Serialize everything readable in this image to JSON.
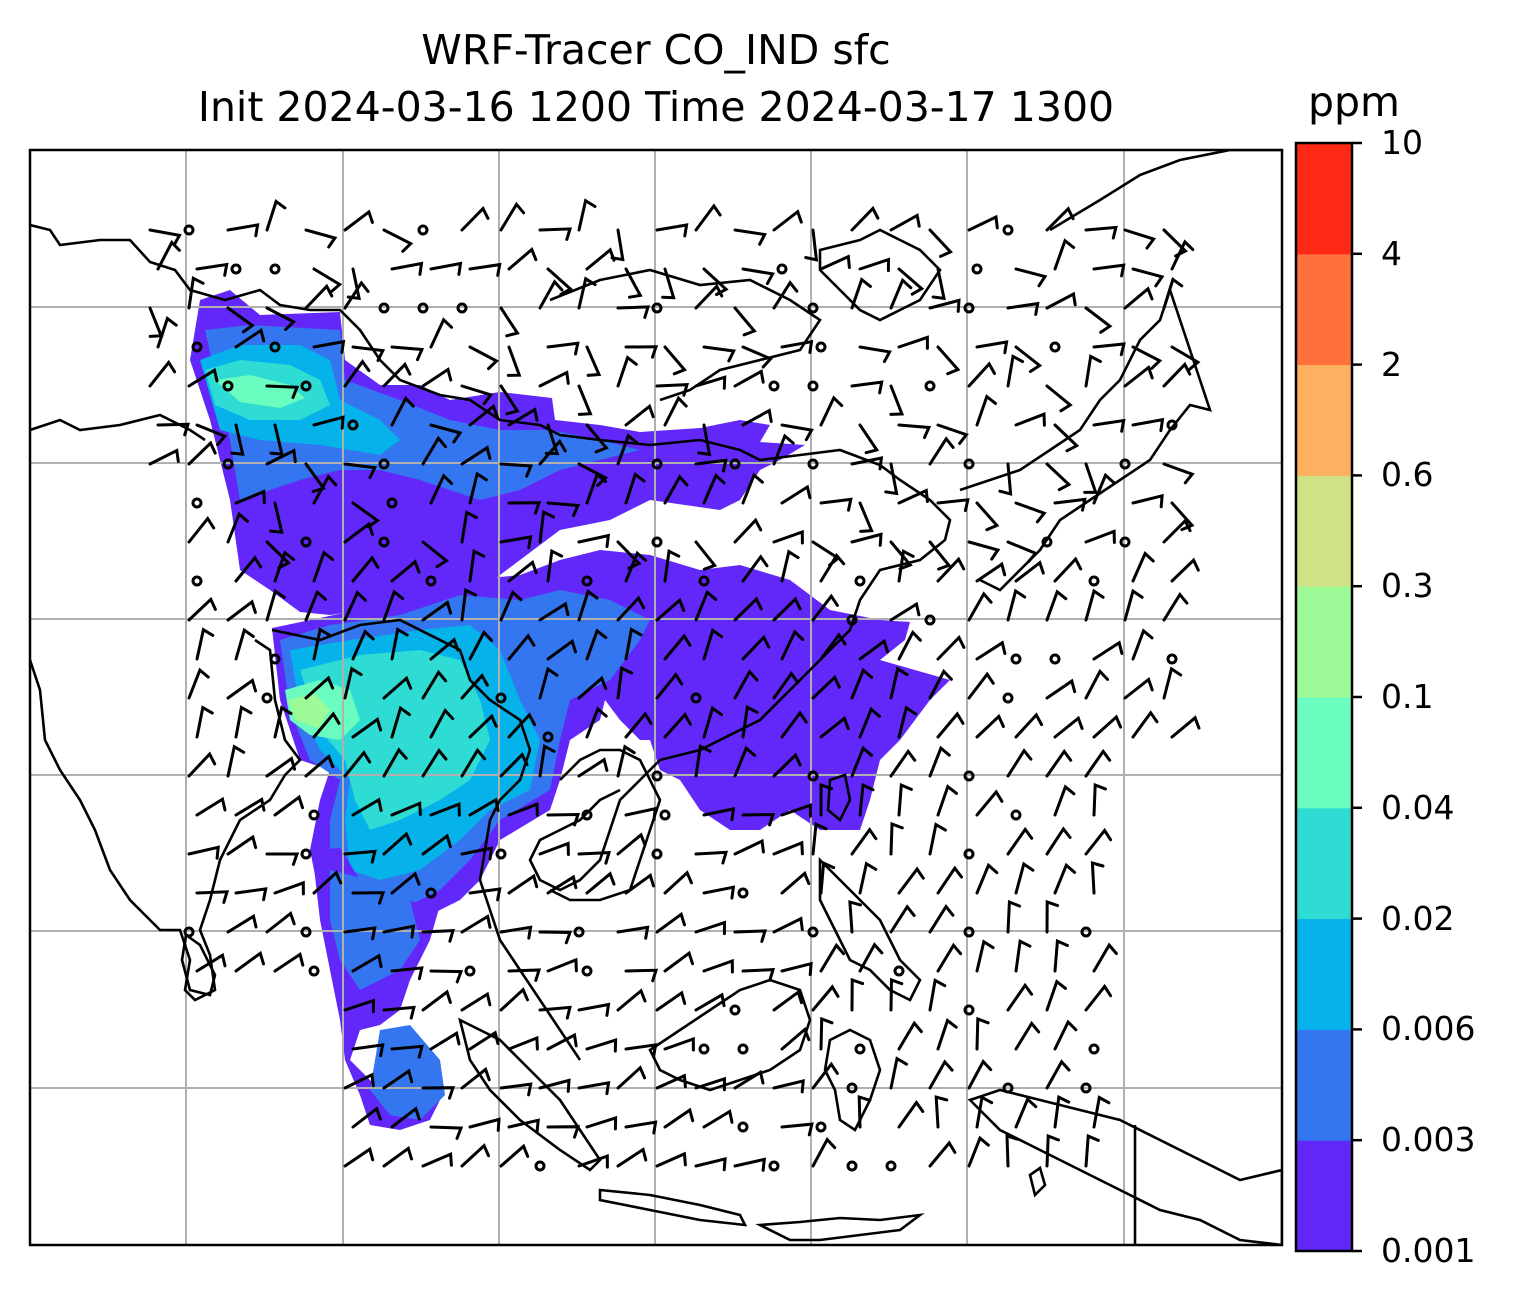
{
  "title": {
    "line1": "WRF-Tracer CO_IND sfc",
    "line2": "Init 2024-03-16 1200 Time 2024-03-17 1300"
  },
  "colorbar": {
    "unit": "ppm",
    "levels": [
      "0.001",
      "0.003",
      "0.006",
      "0.02",
      "0.04",
      "0.1",
      "0.3",
      "0.6",
      "2",
      "4",
      "10"
    ],
    "colors": [
      "#6228fa",
      "#3475f0",
      "#06b2ea",
      "#2fdcd3",
      "#6bfcbf",
      "#9dfb97",
      "#cfe386",
      "#fdb160",
      "#fe703c",
      "#fe2a16"
    ]
  },
  "map_colors": {
    "coastline": "#000000",
    "gridline": "#b0b0b0",
    "barb": "#000000"
  }
}
